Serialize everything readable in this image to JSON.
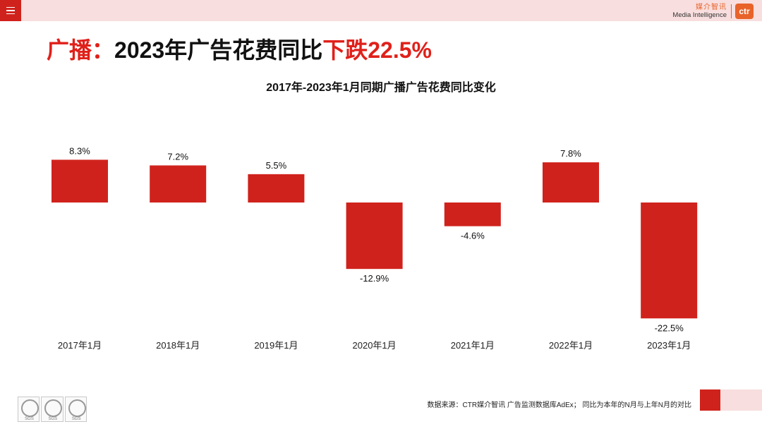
{
  "header": {
    "brand_cn": "媒介智讯",
    "brand_en": "Media Intelligence",
    "brand_logo": "ctr",
    "menu_icon": "hamburger-icon"
  },
  "headline": {
    "prefix": "广播：",
    "middle": "2023年广告花费同比",
    "highlight": "下跌22.5%"
  },
  "chart_data": {
    "type": "bar",
    "title": "2017年-2023年1月同期广播广告花费同比变化",
    "categories": [
      "2017年1月",
      "2018年1月",
      "2019年1月",
      "2020年1月",
      "2021年1月",
      "2022年1月",
      "2023年1月"
    ],
    "values": [
      8.3,
      7.2,
      5.5,
      -12.9,
      -4.6,
      7.8,
      -22.5
    ],
    "value_labels": [
      "8.3%",
      "7.2%",
      "5.5%",
      "-12.9%",
      "-4.6%",
      "7.8%",
      "-22.5%"
    ],
    "bar_color": "#d0221c",
    "xlabel": "",
    "ylabel": "",
    "grid": false
  },
  "footer": {
    "source": "数据来源：CTR媒介智讯 广告监测数据库AdEx；  同比为本年的N月与上年N月的对比",
    "badge_label": "SGS"
  },
  "colors": {
    "accent": "#d0221c",
    "topbar": "#f8dede",
    "headline_red": "#e0201a",
    "brand": "#e8632a"
  }
}
